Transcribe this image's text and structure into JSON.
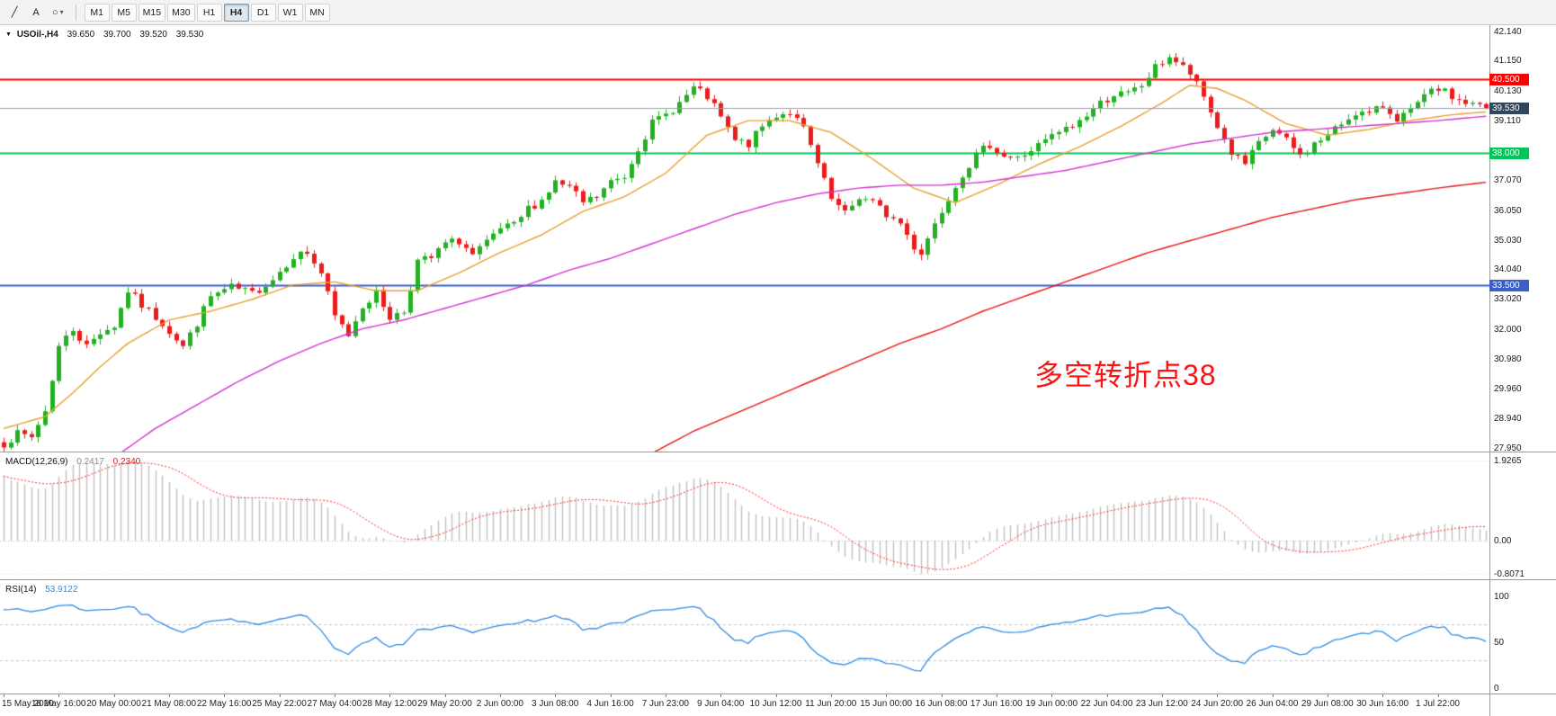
{
  "toolbar": {
    "text_tool_label": "A",
    "timeframes": [
      "M1",
      "M5",
      "M15",
      "M30",
      "H1",
      "H4",
      "D1",
      "W1",
      "MN"
    ],
    "active_timeframe": "H4"
  },
  "icons": {
    "collapse": "▼",
    "caret": "▾",
    "ellipse": "○",
    "trendline": "╱"
  },
  "chart_data": {
    "type": "candlestick",
    "title": "USOil-,H4",
    "ohlc": {
      "open": "39.650",
      "high": "39.700",
      "low": "39.520",
      "close": "39.530"
    },
    "annotation": {
      "text": "多空转折点38",
      "color": "#ff1212"
    },
    "price_axis_labels": [
      "42.140",
      "41.150",
      "40.130",
      "39.110",
      "37.070",
      "36.050",
      "35.030",
      "34.040",
      "33.020",
      "32.000",
      "30.980",
      "29.960",
      "28.940",
      "27.950"
    ],
    "time_axis_labels": [
      "15 May 2020",
      "18 May 16:00",
      "20 May 00:00",
      "21 May 08:00",
      "22 May 16:00",
      "25 May 22:00",
      "27 May 04:00",
      "28 May 12:00",
      "29 May 20:00",
      "2 Jun 00:00",
      "3 Jun 08:00",
      "4 Jun 16:00",
      "7 Jun 23:00",
      "9 Jun 04:00",
      "10 Jun 12:00",
      "11 Jun 20:00",
      "15 Jun 00:00",
      "16 Jun 08:00",
      "17 Jun 16:00",
      "19 Jun 00:00",
      "22 Jun 04:00",
      "23 Jun 12:00",
      "24 Jun 20:00",
      "26 Jun 04:00",
      "29 Jun 08:00",
      "30 Jun 16:00",
      "1 Jul 22:00"
    ],
    "hlines": [
      {
        "price": 40.5,
        "label": "40.500",
        "color": "#ff0000",
        "width": 2
      },
      {
        "price": 38.0,
        "label": "38.000",
        "color": "#00c65a",
        "width": 2
      },
      {
        "price": 33.5,
        "label": "33.500",
        "color": "#3a5fc8",
        "width": 2
      }
    ],
    "bid": {
      "price": 39.53,
      "label": "39.530",
      "line_color": "#9aa0a6",
      "badge_color": "#31455c"
    },
    "candles": {
      "count": 216,
      "seed": 7,
      "noise": 0.3,
      "wick": 0.18,
      "up_color": "#23b123",
      "down_color": "#ec1c1c",
      "anchors": [
        [
          0,
          28.1
        ],
        [
          2,
          28.4
        ],
        [
          4,
          28.3
        ],
        [
          6,
          29.2
        ],
        [
          8,
          31.4
        ],
        [
          10,
          32.0
        ],
        [
          12,
          31.4
        ],
        [
          14,
          31.9
        ],
        [
          16,
          32.1
        ],
        [
          18,
          33.3
        ],
        [
          20,
          32.8
        ],
        [
          23,
          32.2
        ],
        [
          26,
          31.4
        ],
        [
          28,
          32.2
        ],
        [
          30,
          33.1
        ],
        [
          33,
          33.4
        ],
        [
          36,
          33.2
        ],
        [
          39,
          33.7
        ],
        [
          42,
          34.5
        ],
        [
          44,
          34.6
        ],
        [
          46,
          33.9
        ],
        [
          48,
          32.4
        ],
        [
          50,
          31.8
        ],
        [
          52,
          32.8
        ],
        [
          54,
          33.2
        ],
        [
          56,
          32.4
        ],
        [
          58,
          32.6
        ],
        [
          60,
          34.3
        ],
        [
          62,
          34.4
        ],
        [
          64,
          34.9
        ],
        [
          66,
          35.0
        ],
        [
          68,
          34.5
        ],
        [
          70,
          34.9
        ],
        [
          72,
          35.4
        ],
        [
          74,
          35.5
        ],
        [
          76,
          36.1
        ],
        [
          78,
          36.4
        ],
        [
          80,
          37.0
        ],
        [
          82,
          36.8
        ],
        [
          84,
          36.3
        ],
        [
          86,
          36.5
        ],
        [
          88,
          37.0
        ],
        [
          90,
          37.2
        ],
        [
          92,
          38.2
        ],
        [
          94,
          39.0
        ],
        [
          96,
          39.3
        ],
        [
          98,
          39.7
        ],
        [
          100,
          40.2
        ],
        [
          102,
          39.9
        ],
        [
          104,
          39.2
        ],
        [
          106,
          38.4
        ],
        [
          108,
          38.3
        ],
        [
          110,
          38.9
        ],
        [
          112,
          39.3
        ],
        [
          114,
          39.4
        ],
        [
          116,
          38.8
        ],
        [
          118,
          37.6
        ],
        [
          120,
          36.4
        ],
        [
          122,
          35.9
        ],
        [
          124,
          36.5
        ],
        [
          126,
          36.3
        ],
        [
          128,
          35.9
        ],
        [
          130,
          35.6
        ],
        [
          132,
          34.8
        ],
        [
          133,
          34.6
        ],
        [
          135,
          35.6
        ],
        [
          137,
          36.5
        ],
        [
          139,
          37.3
        ],
        [
          141,
          37.9
        ],
        [
          143,
          38.3
        ],
        [
          145,
          37.9
        ],
        [
          147,
          37.8
        ],
        [
          149,
          38.1
        ],
        [
          151,
          38.4
        ],
        [
          153,
          38.7
        ],
        [
          155,
          38.9
        ],
        [
          157,
          39.3
        ],
        [
          159,
          39.7
        ],
        [
          161,
          40.0
        ],
        [
          163,
          40.0
        ],
        [
          165,
          40.3
        ],
        [
          167,
          40.9
        ],
        [
          169,
          41.3
        ],
        [
          170,
          41.1
        ],
        [
          172,
          40.7
        ],
        [
          174,
          39.9
        ],
        [
          176,
          38.9
        ],
        [
          178,
          38.0
        ],
        [
          180,
          37.6
        ],
        [
          182,
          38.3
        ],
        [
          184,
          38.8
        ],
        [
          186,
          38.4
        ],
        [
          188,
          37.9
        ],
        [
          190,
          38.3
        ],
        [
          192,
          38.6
        ],
        [
          194,
          39.0
        ],
        [
          196,
          39.4
        ],
        [
          198,
          39.3
        ],
        [
          200,
          39.6
        ],
        [
          202,
          39.2
        ],
        [
          204,
          39.4
        ],
        [
          206,
          39.9
        ],
        [
          208,
          40.2
        ],
        [
          210,
          39.9
        ],
        [
          212,
          39.7
        ],
        [
          215,
          39.53
        ]
      ]
    },
    "moving_averages": [
      {
        "name": "ma-fast-orange",
        "color": "#e8a030",
        "anchors": [
          [
            0,
            28.6
          ],
          [
            6,
            29.0
          ],
          [
            10,
            29.8
          ],
          [
            14,
            30.7
          ],
          [
            18,
            31.5
          ],
          [
            24,
            32.3
          ],
          [
            30,
            32.6
          ],
          [
            36,
            33.0
          ],
          [
            42,
            33.5
          ],
          [
            48,
            33.6
          ],
          [
            54,
            33.3
          ],
          [
            60,
            33.3
          ],
          [
            66,
            33.9
          ],
          [
            72,
            34.6
          ],
          [
            78,
            35.2
          ],
          [
            84,
            36.0
          ],
          [
            90,
            36.5
          ],
          [
            96,
            37.3
          ],
          [
            102,
            38.6
          ],
          [
            108,
            39.1
          ],
          [
            114,
            39.1
          ],
          [
            120,
            38.7
          ],
          [
            126,
            37.8
          ],
          [
            132,
            36.8
          ],
          [
            138,
            36.3
          ],
          [
            144,
            36.9
          ],
          [
            150,
            37.6
          ],
          [
            156,
            38.2
          ],
          [
            162,
            38.9
          ],
          [
            168,
            39.7
          ],
          [
            172,
            40.3
          ],
          [
            176,
            40.2
          ],
          [
            180,
            39.8
          ],
          [
            186,
            39.0
          ],
          [
            192,
            38.6
          ],
          [
            198,
            38.8
          ],
          [
            204,
            39.1
          ],
          [
            210,
            39.3
          ],
          [
            215,
            39.4
          ]
        ]
      },
      {
        "name": "ma-mid-magenta",
        "color": "#d233d2",
        "anchors": [
          [
            16,
            27.6
          ],
          [
            22,
            28.6
          ],
          [
            28,
            29.4
          ],
          [
            34,
            30.2
          ],
          [
            40,
            30.9
          ],
          [
            46,
            31.5
          ],
          [
            52,
            32.0
          ],
          [
            58,
            32.3
          ],
          [
            64,
            32.7
          ],
          [
            70,
            33.1
          ],
          [
            76,
            33.5
          ],
          [
            82,
            34.0
          ],
          [
            88,
            34.4
          ],
          [
            94,
            34.9
          ],
          [
            100,
            35.4
          ],
          [
            106,
            35.9
          ],
          [
            112,
            36.3
          ],
          [
            118,
            36.6
          ],
          [
            124,
            36.8
          ],
          [
            130,
            36.9
          ],
          [
            136,
            36.9
          ],
          [
            142,
            37.0
          ],
          [
            148,
            37.2
          ],
          [
            154,
            37.4
          ],
          [
            160,
            37.7
          ],
          [
            166,
            38.0
          ],
          [
            172,
            38.3
          ],
          [
            178,
            38.5
          ],
          [
            184,
            38.7
          ],
          [
            190,
            38.8
          ],
          [
            196,
            38.9
          ],
          [
            202,
            39.0
          ],
          [
            208,
            39.1
          ],
          [
            215,
            39.25
          ]
        ]
      },
      {
        "name": "ma-slow-red",
        "color": "#ea1212",
        "anchors": [
          [
            92,
            27.5
          ],
          [
            100,
            28.5
          ],
          [
            106,
            29.1
          ],
          [
            112,
            29.7
          ],
          [
            118,
            30.3
          ],
          [
            124,
            30.9
          ],
          [
            130,
            31.5
          ],
          [
            136,
            32.0
          ],
          [
            142,
            32.6
          ],
          [
            148,
            33.1
          ],
          [
            154,
            33.6
          ],
          [
            160,
            34.1
          ],
          [
            166,
            34.6
          ],
          [
            172,
            35.0
          ],
          [
            178,
            35.4
          ],
          [
            184,
            35.8
          ],
          [
            190,
            36.1
          ],
          [
            196,
            36.4
          ],
          [
            202,
            36.6
          ],
          [
            208,
            36.8
          ],
          [
            215,
            37.0
          ]
        ]
      }
    ]
  },
  "macd": {
    "name": "MACD(12,26,9)",
    "value_main": "0.2417",
    "value_signal": "0.2340",
    "scale_labels": [
      "1.9265",
      "0.00",
      "-0.8071"
    ],
    "histogram_color": "#c0c0c0",
    "signal_color": "#ff2a2a"
  },
  "rsi": {
    "name": "RSI(14)",
    "value": "53.9122",
    "scale_labels": [
      "100",
      "50",
      "0"
    ],
    "levels": [
      70,
      30
    ],
    "line_color": "#2f8be6"
  }
}
